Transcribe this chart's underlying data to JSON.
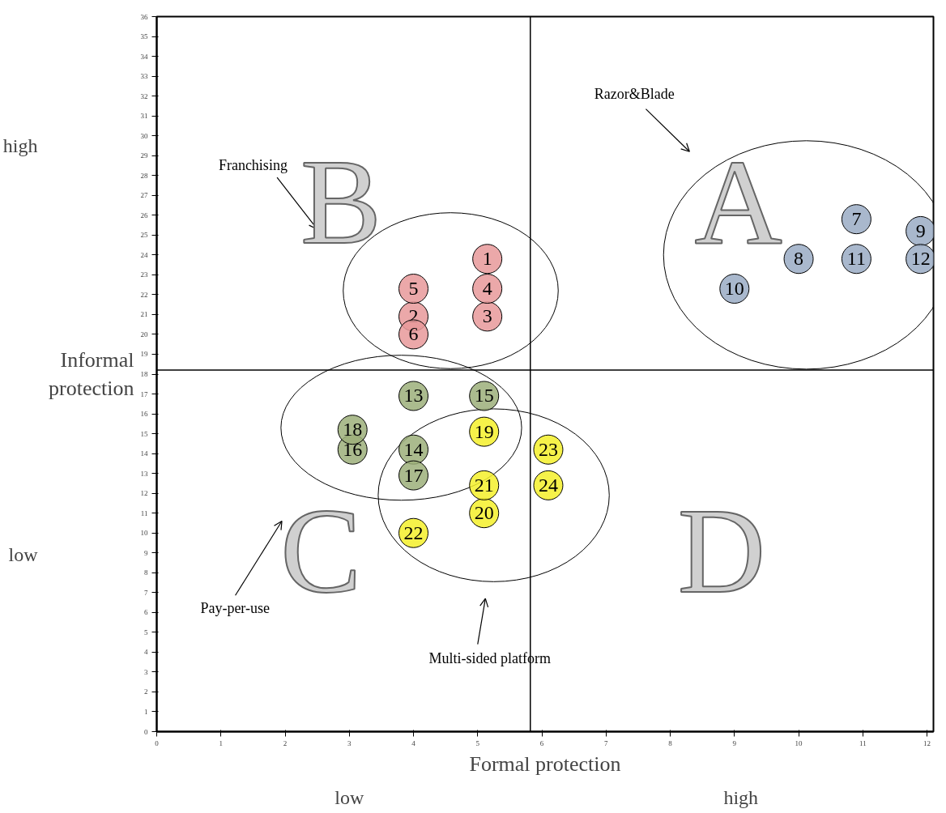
{
  "chart_data": {
    "type": "scatter",
    "xlabel": "Formal protection",
    "ylabel": "Informal\nprotection",
    "xlim": [
      0,
      12.1
    ],
    "ylim": [
      0,
      36
    ],
    "xticks": [
      0,
      1,
      2,
      3,
      4,
      5,
      6,
      7,
      8,
      9,
      10,
      11,
      12
    ],
    "yticks": [
      0,
      1,
      2,
      3,
      4,
      5,
      6,
      7,
      8,
      9,
      10,
      11,
      12,
      13,
      14,
      15,
      16,
      17,
      18,
      19,
      20,
      21,
      22,
      23,
      24,
      25,
      26,
      27,
      28,
      29,
      30,
      31,
      32,
      33,
      34,
      35,
      36
    ],
    "grid": false,
    "legend": false,
    "marker": "circle",
    "ref_lines": [
      {
        "axis": "x",
        "value": 5.82,
        "label": null
      },
      {
        "axis": "y",
        "value": 18.2,
        "label": null
      }
    ],
    "series": [
      {
        "name": "1",
        "color": "#e8999a",
        "x": [
          5.15
        ],
        "values": [
          23.8
        ]
      },
      {
        "name": "2",
        "color": "#e8999a",
        "x": [
          4
        ],
        "values": [
          20.9
        ]
      },
      {
        "name": "3",
        "color": "#e8999a",
        "x": [
          5.15
        ],
        "values": [
          20.9
        ]
      },
      {
        "name": "4",
        "color": "#e8999a",
        "x": [
          5.15
        ],
        "values": [
          22.3
        ]
      },
      {
        "name": "5",
        "color": "#e8999a",
        "x": [
          4
        ],
        "values": [
          22.3
        ]
      },
      {
        "name": "6",
        "color": "#e8999a",
        "x": [
          4
        ],
        "values": [
          20
        ]
      },
      {
        "name": "7",
        "color": "#9aabc4",
        "x": [
          10.9
        ],
        "values": [
          25.8
        ]
      },
      {
        "name": "8",
        "color": "#9aabc4",
        "x": [
          10
        ],
        "values": [
          23.8
        ]
      },
      {
        "name": "9",
        "color": "#9aabc4",
        "x": [
          11.9
        ],
        "values": [
          25.2
        ]
      },
      {
        "name": "10",
        "color": "#9aabc4",
        "x": [
          9
        ],
        "values": [
          22.3
        ]
      },
      {
        "name": "11",
        "color": "#9aabc4",
        "x": [
          10.9
        ],
        "values": [
          23.8
        ]
      },
      {
        "name": "12",
        "color": "#9aabc4",
        "x": [
          11.9
        ],
        "values": [
          23.8
        ]
      },
      {
        "name": "13",
        "color": "#9caf7a",
        "x": [
          4
        ],
        "values": [
          16.9
        ]
      },
      {
        "name": "14",
        "color": "#9caf7a",
        "x": [
          4
        ],
        "values": [
          14.2
        ]
      },
      {
        "name": "15",
        "color": "#9caf7a",
        "x": [
          5.1
        ],
        "values": [
          16.9
        ]
      },
      {
        "name": "16",
        "color": "#9caf7a",
        "x": [
          3.05
        ],
        "values": [
          14.2
        ]
      },
      {
        "name": "17",
        "color": "#9caf7a",
        "x": [
          4
        ],
        "values": [
          12.9
        ]
      },
      {
        "name": "18",
        "color": "#9caf7a",
        "x": [
          3.05
        ],
        "values": [
          15.2
        ]
      },
      {
        "name": "19",
        "color": "#f5f02a",
        "x": [
          5.1
        ],
        "values": [
          15.1
        ]
      },
      {
        "name": "20",
        "color": "#f5f02a",
        "x": [
          5.1
        ],
        "values": [
          11
        ]
      },
      {
        "name": "21",
        "color": "#f5f02a",
        "x": [
          5.1
        ],
        "values": [
          12.4
        ]
      },
      {
        "name": "22",
        "color": "#f5f02a",
        "x": [
          4
        ],
        "values": [
          10
        ]
      },
      {
        "name": "23",
        "color": "#f5f02a",
        "x": [
          6.1
        ],
        "values": [
          14.2
        ]
      },
      {
        "name": "24",
        "color": "#f5f02a",
        "x": [
          6.1
        ],
        "values": [
          12.4
        ]
      }
    ],
    "annotations": [
      "Razor&Blade",
      "Franchising",
      "Pay-per-use",
      "Multi-sided platform",
      "A",
      "B",
      "C",
      "D",
      "low",
      "high",
      "high",
      "low"
    ]
  }
}
